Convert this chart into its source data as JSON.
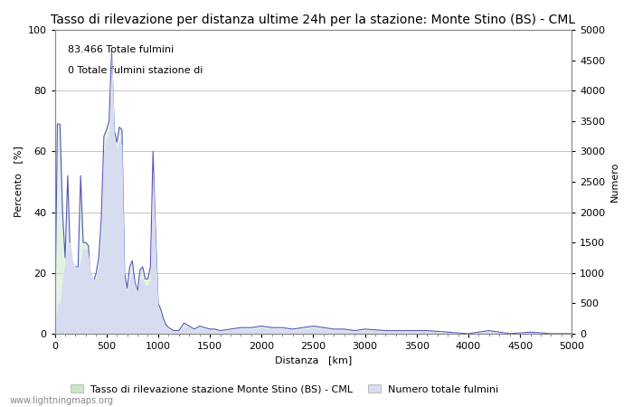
{
  "title": "Tasso di rilevazione per distanza ultime 24h per la stazione: Monte Stino (BS) - CML",
  "xlabel": "Distanza   [km]",
  "ylabel_left": "Percento   [%]",
  "ylabel_right": "Numero",
  "annotation_line1": "83.466 Totale fulmini",
  "annotation_line2": "0 Totale fulmini stazione di",
  "xlim": [
    0,
    5000
  ],
  "ylim_left": [
    0,
    100
  ],
  "ylim_right": [
    0,
    5000
  ],
  "xticks": [
    0,
    500,
    1000,
    1500,
    2000,
    2500,
    3000,
    3500,
    4000,
    4500,
    5000
  ],
  "yticks_left": [
    0,
    20,
    40,
    60,
    80,
    100
  ],
  "yticks_right": [
    0,
    500,
    1000,
    1500,
    2000,
    2500,
    3000,
    3500,
    4000,
    4500,
    5000
  ],
  "legend_label_green": "Tasso di rilevazione stazione Monte Stino (BS) - CML",
  "legend_label_blue": "Numero totale fulmini",
  "fill_green_color": "#c8e8c8",
  "fill_blue_color": "#d8dcf0",
  "line_color": "#5555bb",
  "background_color": "#ffffff",
  "grid_color": "#999999",
  "watermark": "www.lightningmaps.org",
  "title_fontsize": 10,
  "axis_fontsize": 8,
  "tick_fontsize": 8,
  "watermark_fontsize": 7,
  "pct_x": [
    0,
    25,
    50,
    75,
    100,
    125,
    150,
    175,
    200,
    225,
    250,
    275,
    300,
    325,
    350,
    375,
    400,
    425,
    450,
    475,
    500,
    525,
    550,
    575,
    600,
    625,
    650,
    675,
    700,
    725,
    750,
    775,
    800,
    825,
    850,
    875,
    900,
    925,
    950,
    975,
    1000,
    1025,
    1050,
    1075,
    1100,
    1150,
    1200,
    1250,
    1300,
    1350,
    1400,
    1450,
    1500,
    1550,
    1600,
    1700,
    1800,
    1900,
    2000,
    2100,
    2200,
    2300,
    2400,
    2500,
    2600,
    2700,
    2800,
    2900,
    3000,
    3200,
    3400,
    3600,
    3800,
    4000,
    4200,
    4400,
    4600,
    4800,
    5000
  ],
  "pct_y": [
    0,
    69,
    69,
    40,
    25,
    52,
    25,
    20,
    22,
    22,
    52,
    30,
    30,
    29,
    15,
    17,
    20,
    25,
    38,
    65,
    67,
    70,
    93,
    67,
    63,
    68,
    67,
    20,
    15,
    22,
    24,
    17,
    14,
    21,
    22,
    18,
    18,
    22,
    60,
    33,
    10,
    8,
    5,
    3,
    2,
    1,
    1,
    3.5,
    2.5,
    1.5,
    2.5,
    2,
    1.5,
    1.5,
    1,
    1.5,
    2,
    2,
    2.5,
    2,
    2,
    1.5,
    2,
    2.5,
    2,
    1.5,
    1.5,
    1,
    1.5,
    1,
    1,
    1,
    0.5,
    0,
    1,
    0,
    0.5,
    0,
    0
  ],
  "cnt_x": [
    0,
    25,
    50,
    75,
    100,
    125,
    150,
    175,
    200,
    225,
    250,
    275,
    300,
    325,
    350,
    375,
    400,
    425,
    450,
    475,
    500,
    525,
    550,
    575,
    600,
    625,
    650,
    675,
    700,
    725,
    750,
    775,
    800,
    825,
    850,
    875,
    900,
    925,
    950,
    975,
    1000,
    1025,
    1050,
    1075,
    1100,
    1150,
    1200,
    1250,
    1300,
    1350,
    1400,
    1450,
    1500,
    1550,
    1600,
    1700,
    1800,
    1900,
    2000,
    2100,
    2200,
    2300,
    2400,
    2500,
    2600,
    2700,
    2800,
    2900,
    3000,
    3200,
    3400,
    3600,
    3800,
    4000,
    4200,
    4400,
    4600,
    4800,
    5000
  ],
  "cnt_y": [
    0,
    500,
    500,
    900,
    1200,
    1500,
    1500,
    1200,
    1100,
    1100,
    1200,
    1400,
    1400,
    1300,
    1000,
    900,
    900,
    1100,
    1700,
    3000,
    3200,
    3300,
    4700,
    3300,
    3000,
    3200,
    3100,
    800,
    700,
    900,
    1000,
    800,
    700,
    900,
    900,
    800,
    800,
    900,
    2700,
    1500,
    450,
    300,
    180,
    100,
    70,
    40,
    30,
    140,
    100,
    60,
    100,
    80,
    60,
    60,
    40,
    60,
    80,
    80,
    100,
    80,
    80,
    60,
    80,
    100,
    80,
    60,
    60,
    40,
    60,
    40,
    40,
    40,
    20,
    0,
    40,
    0,
    20,
    0,
    0
  ]
}
